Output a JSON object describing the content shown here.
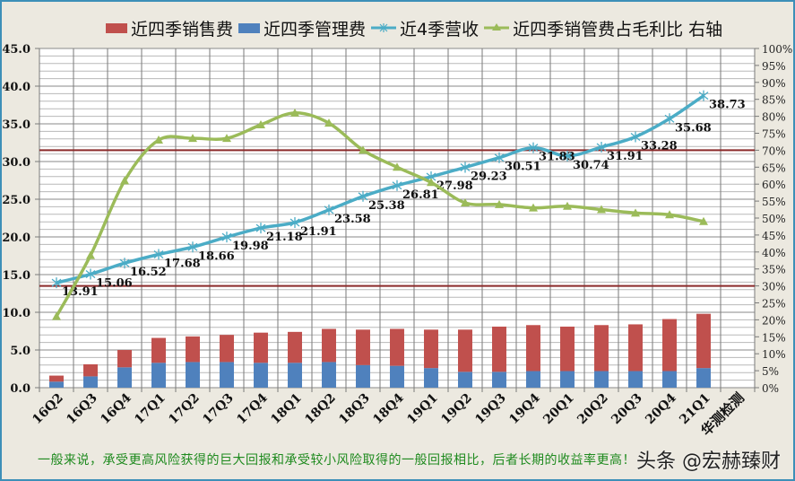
{
  "legend": [
    {
      "label": "近四季销售费",
      "kind": "bar",
      "color": "#c0504d"
    },
    {
      "label": "近四季管理费",
      "kind": "bar",
      "color": "#4f81bd"
    },
    {
      "label": "近4季营收",
      "kind": "line",
      "color": "#4bacc6",
      "marker": "asterisk"
    },
    {
      "label": "近四季销管费占毛利比 右轴",
      "kind": "line",
      "color": "#9bbb59",
      "marker": "triangle"
    }
  ],
  "footnote": "一般来说，承受更高风险获得的巨大回报和承受较小风险取得的一般回报相比，后者长期的收益率更高！",
  "watermark": "头条 @宏赫臻财",
  "chart_data": {
    "type": "bar+line",
    "title": "",
    "categories": [
      "16Q2",
      "16Q3",
      "16Q4",
      "17Q1",
      "17Q2",
      "17Q3",
      "17Q4",
      "18Q1",
      "18Q2",
      "18Q3",
      "18Q4",
      "19Q1",
      "19Q2",
      "19Q3",
      "19Q4",
      "20Q1",
      "20Q2",
      "20Q3",
      "20Q4",
      "21Q1",
      "华测检测"
    ],
    "left_axis": {
      "min": 0,
      "max": 45,
      "step": 5,
      "minor_step": 1,
      "tick_labels": [
        "0.0",
        "5.0",
        "10.0",
        "15.0",
        "20.0",
        "25.0",
        "30.0",
        "35.0",
        "40.0",
        "45.0"
      ]
    },
    "right_axis": {
      "min": 0,
      "max": 100,
      "step": 5,
      "unit": "%",
      "tick_labels": [
        "0%",
        "5%",
        "10%",
        "15%",
        "20%",
        "25%",
        "30%",
        "35%",
        "40%",
        "45%",
        "50%",
        "55%",
        "60%",
        "65%",
        "70%",
        "75%",
        "80%",
        "85%",
        "90%",
        "95%",
        "100%"
      ]
    },
    "series": [
      {
        "name": "近四季管理费",
        "type": "bar",
        "stack": "fees",
        "axis": "left",
        "color": "#4f81bd",
        "values": [
          0.8,
          1.5,
          2.7,
          3.3,
          3.4,
          3.4,
          3.3,
          3.3,
          3.4,
          3.0,
          2.9,
          2.6,
          2.1,
          2.1,
          2.2,
          2.2,
          2.2,
          2.2,
          2.2,
          2.6,
          null
        ]
      },
      {
        "name": "近四季销售费",
        "type": "bar",
        "stack": "fees",
        "axis": "left",
        "color": "#c0504d",
        "values": [
          0.8,
          1.6,
          2.3,
          3.3,
          3.4,
          3.6,
          4.0,
          4.1,
          4.4,
          4.7,
          4.9,
          5.1,
          5.6,
          6.0,
          6.1,
          5.9,
          6.1,
          6.2,
          6.9,
          7.2,
          null
        ]
      },
      {
        "name": "近4季营收",
        "type": "line",
        "axis": "left",
        "color": "#4bacc6",
        "marker": "asterisk",
        "values": [
          13.91,
          15.06,
          16.52,
          17.68,
          18.66,
          19.98,
          21.18,
          21.91,
          23.58,
          25.38,
          26.81,
          27.98,
          29.23,
          30.51,
          31.83,
          30.74,
          31.91,
          33.28,
          35.68,
          38.73,
          null
        ],
        "data_labels": [
          "13.91",
          "15.06",
          "16.52",
          "17.68",
          "18.66",
          "19.98",
          "21.18",
          "21.91",
          "23.58",
          "25.38",
          "26.81",
          "27.98",
          "29.23",
          "30.51",
          "31.83",
          "30.74",
          "31.91",
          "33.28",
          "35.68",
          "38.73",
          ""
        ]
      },
      {
        "name": "近四季销管费占毛利比 右轴",
        "type": "line",
        "axis": "right",
        "color": "#9bbb59",
        "marker": "triangle",
        "values": [
          21,
          39,
          61,
          73,
          73.5,
          73.5,
          77.5,
          81,
          78,
          70,
          65,
          60.5,
          54.5,
          54,
          53,
          53.5,
          52.5,
          51.5,
          51,
          49,
          null
        ]
      }
    ],
    "reference_lines": [
      {
        "axis": "right",
        "value": 70,
        "color": "#8b2a2a"
      },
      {
        "axis": "right",
        "value": 30,
        "color": "#8b2a2a"
      }
    ],
    "grid": true,
    "legend_position": "top"
  }
}
